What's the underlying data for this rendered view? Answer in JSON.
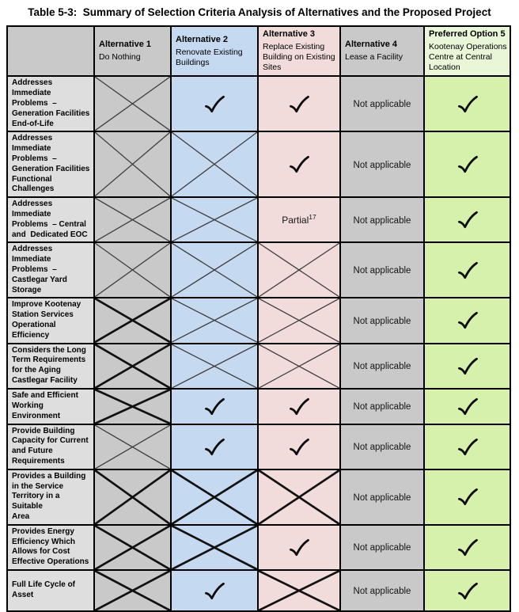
{
  "title": "Table 5-3:  Summary of Selection Criteria Analysis of Alternatives and the Proposed Project",
  "table": {
    "columns": [
      {
        "id": "criteria",
        "title": "",
        "subtitle": "",
        "color": "#dedede",
        "header_color": "#c9c9c9"
      },
      {
        "id": "alternative-1",
        "title": "Alternative 1",
        "subtitle": "Do Nothing",
        "color": "#c9c9c9"
      },
      {
        "id": "alternative-2",
        "title": "Alternative 2",
        "subtitle": "Renovate Existing\nBuildings",
        "color": "#c5d9f0"
      },
      {
        "id": "alternative-3",
        "title": "Alternative 3",
        "subtitle": "Replace Existing\nBuilding on Existing\nSites",
        "color": "#f2dcdb"
      },
      {
        "id": "alternative-4",
        "title": "Alternative 4",
        "subtitle": "Lease a Facility",
        "color": "#c9c9c9"
      },
      {
        "id": "preferred-option-5",
        "title": "Preferred Option 5",
        "subtitle": "Kootenay Operations\nCentre at Central\nLocation",
        "color": "#d5f1ac",
        "header_color": "#e9f7d8"
      }
    ],
    "marks": {
      "na_label": "Not applicable",
      "partial_label": "Partial",
      "partial_superscript": "17"
    },
    "rows": [
      {
        "label": "Addresses Immediate\nProblems  –\nGeneration Facilities\nEnd-of-Life",
        "cells": [
          "cross",
          "check",
          "check",
          "na",
          "check"
        ]
      },
      {
        "label": "Addresses Immediate\nProblems  –\nGeneration Facilities\nFunctional\nChallenges",
        "cells": [
          "cross",
          "cross",
          "check",
          "na",
          "check"
        ]
      },
      {
        "label": "Addresses Immediate\nProblems  – Central\nand  Dedicated EOC",
        "cells": [
          "cross",
          "cross",
          "partial",
          "na",
          "check"
        ]
      },
      {
        "label": "Addresses Immediate\nProblems  –\nCastlegar Yard\nStorage",
        "cells": [
          "cross",
          "cross",
          "cross",
          "na",
          "check"
        ]
      },
      {
        "label": "Improve Kootenay\nStation Services\nOperational\nEfficiency",
        "cells": [
          "cross-bold",
          "cross",
          "cross",
          "na",
          "check"
        ]
      },
      {
        "label": "Considers the Long\nTerm Requirements\nfor the Aging\nCastlegar Facility",
        "cells": [
          "cross-bold",
          "cross",
          "cross",
          "na",
          "check"
        ]
      },
      {
        "label": "Safe and Efficient\nWorking Environment",
        "cells": [
          "cross-bold",
          "check",
          "check",
          "na",
          "check"
        ]
      },
      {
        "label": "Provide Building\nCapacity for Current\nand Future\nRequirements",
        "cells": [
          "cross",
          "check",
          "check",
          "na",
          "check"
        ]
      },
      {
        "label": "Provides a Building\nin the Service\nTerritory in a Suitable\nArea",
        "cells": [
          "cross-bold",
          "cross-bold",
          "cross-bold",
          "na",
          "check"
        ]
      },
      {
        "label": "Provides Energy\nEfficiency Which\nAllows for Cost\nEffective Operations",
        "cells": [
          "cross-bold",
          "cross-bold",
          "check",
          "na",
          "check"
        ]
      },
      {
        "label": "Full Life Cycle of\nAsset",
        "cells": [
          "cross-bold",
          "check",
          "cross-bold",
          "na",
          "check"
        ]
      }
    ]
  }
}
